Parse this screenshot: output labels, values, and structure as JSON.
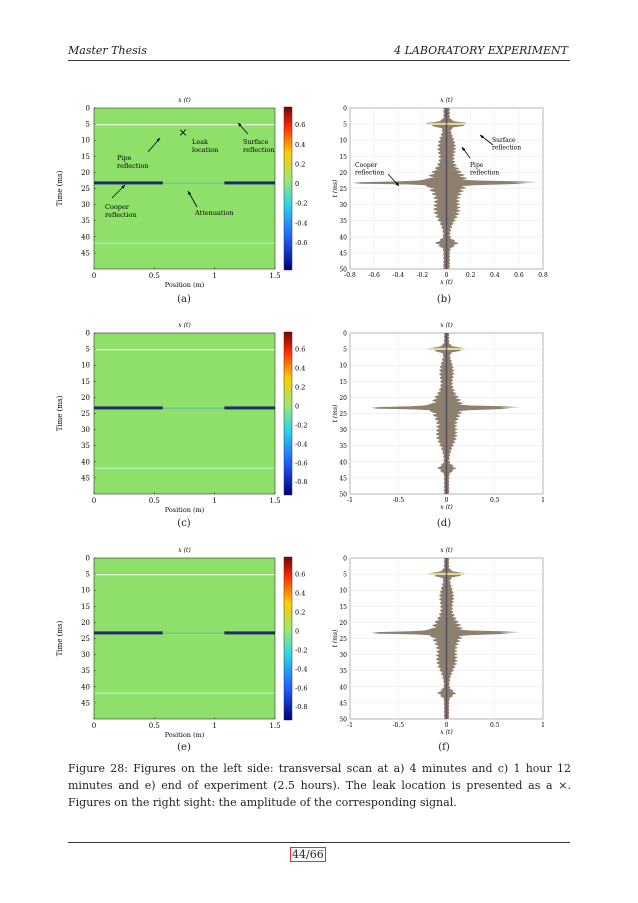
{
  "header": {
    "left": "Master Thesis",
    "right": "4   LABORATORY EXPERIMENT"
  },
  "scan_axes": {
    "title": "x (t)",
    "ylabel": "Time (ms)",
    "xlabel": "Position (m)",
    "yticks": [
      "0",
      "5",
      "10",
      "15",
      "20",
      "25",
      "30",
      "35",
      "40",
      "45"
    ],
    "xticks": [
      "0",
      "0.5",
      "1",
      "1.5"
    ]
  },
  "colorbar": {
    "ticks_a": [
      "0.6",
      "0.4",
      "0.2",
      "0",
      "-0.2",
      "-0.4",
      "-0.6"
    ],
    "ticks_ce": [
      "0.6",
      "0.4",
      "0.2",
      "0",
      "-0.2",
      "-0.4",
      "-0.6",
      "-0.8"
    ]
  },
  "amp_axes": {
    "ylabel": "t (ms)",
    "xlabel": "x (t)",
    "yticks": [
      "0",
      "5",
      "10",
      "15",
      "20",
      "25",
      "30",
      "35",
      "40",
      "45",
      "50"
    ],
    "xticks_b": [
      "-0.8",
      "-0.6",
      "-0.4",
      "-0.2",
      "0",
      "0.2",
      "0.4",
      "0.6",
      "0.8"
    ],
    "xticks_df": [
      "-1",
      "-0.5",
      "0",
      "0.5",
      "1"
    ]
  },
  "annotations_a": {
    "leak_marker": "×",
    "leak": [
      "Leak",
      "location"
    ],
    "surface": [
      "Surface",
      "reflection"
    ],
    "pipe": [
      "Pipe",
      "reflection"
    ],
    "cooper": [
      "Cooper",
      "reflection"
    ],
    "attenuation": "Attenuation"
  },
  "annotations_b": {
    "surface": [
      "Surface",
      "reflection"
    ],
    "cooper": [
      "Cooper",
      "reflection"
    ],
    "pipe": [
      "Pipe",
      "reflection"
    ]
  },
  "sublabels": {
    "a": "(a)",
    "b": "(b)",
    "c": "(c)",
    "d": "(d)",
    "e": "(e)",
    "f": "(f)"
  },
  "caption": "Figure 28: Figures on the left side: transversal scan at a) 4 minutes and c) 1 hour 12 minutes and e) end of experiment (2.5 hours). The leak location is presented as a ×. Figures on the right sight: the amplitude of the corresponding signal.",
  "page_number": "44/66",
  "colors": {
    "field": "#8ee06a",
    "accent": "#d33"
  }
}
